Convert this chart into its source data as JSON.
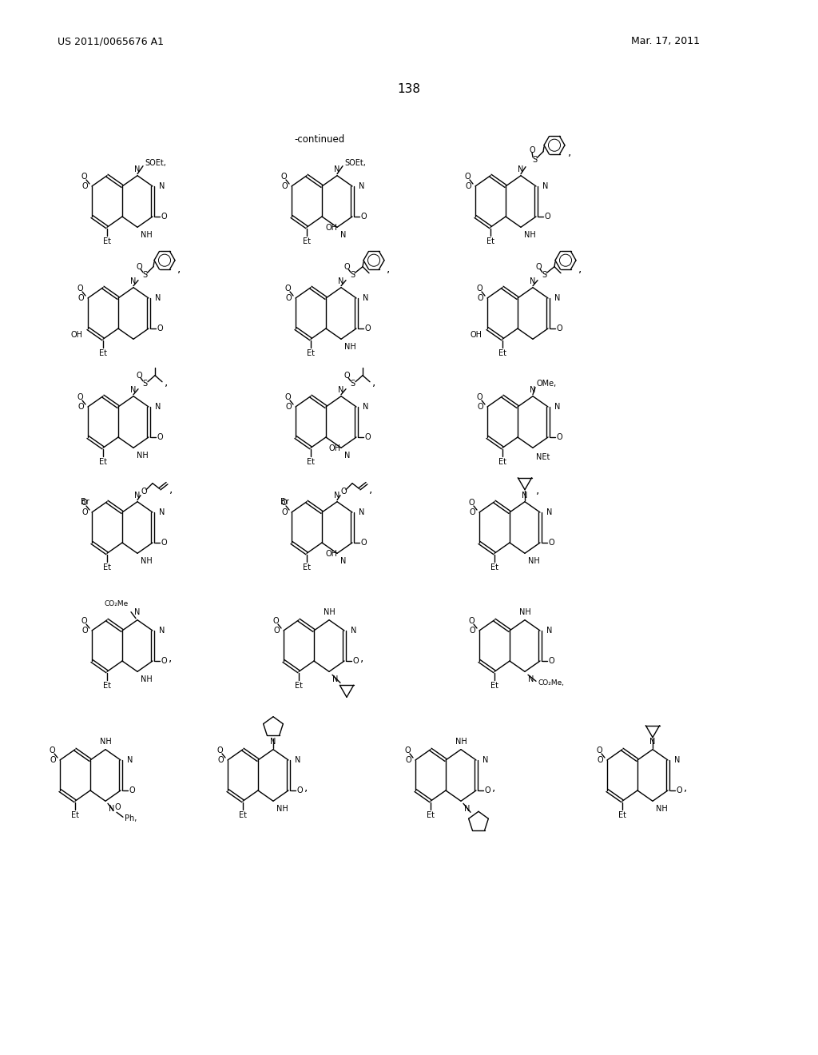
{
  "patent_number": "US 2011/0065676 A1",
  "date": "Mar. 17, 2011",
  "page_number": "138",
  "continued": "-continued",
  "bg": "#ffffff"
}
